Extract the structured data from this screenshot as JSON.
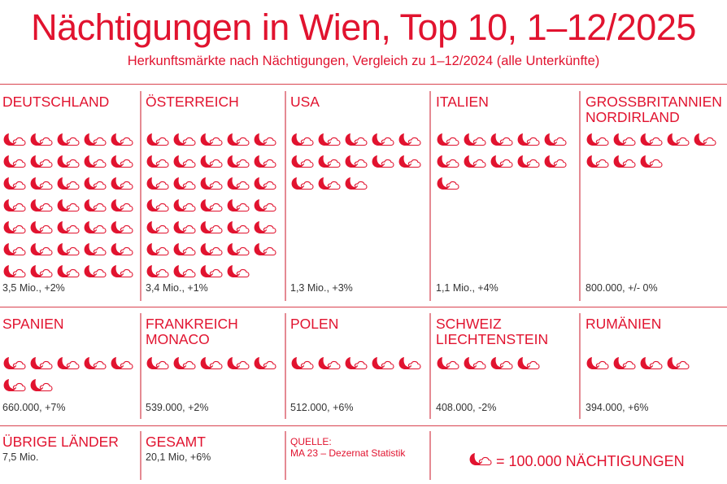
{
  "title": "Nächtigungen in Wien, Top 10, 1–12/2025",
  "subtitle": "Herkunftsmärkte nach Nächtigungen, Vergleich zu 1–12/2024 (alle Unterkünfte)",
  "colors": {
    "accent": "#e1132f",
    "divider": "#e58a93",
    "text": "#333333"
  },
  "icon": "moon-cloud-icon",
  "chart_data": {
    "type": "pictogram",
    "title": "Nächtigungen in Wien, Top 10, 1–12/2025",
    "unit_per_icon": 100000,
    "categories": [
      "DEUTSCHLAND",
      "ÖSTERREICH",
      "USA",
      "ITALIEN",
      "GROSSBRITANNIEN NORDIRLAND",
      "SPANIEN",
      "FRANKREICH MONACO",
      "POLEN",
      "SCHWEIZ LIECHTENSTEIN",
      "RUMÄNIEN"
    ],
    "icons": [
      35,
      34,
      13,
      11,
      8,
      7,
      5,
      5,
      4,
      4
    ],
    "labels": [
      "3,5 Mio., +2%",
      "3,4 Mio., +1%",
      "1,3 Mio., +3%",
      "1,1 Mio., +4%",
      "800.000, +/- 0%",
      "660.000, +7%",
      "539.000, +2%",
      "512.000, +6%",
      "408.000, -2%",
      "394.000, +6%"
    ]
  },
  "footer": {
    "others_label": "ÜBRIGE LÄNDER",
    "others_value": "7,5 Mio.",
    "total_label": "GESAMT",
    "total_value": "20,1 Mio, +6%",
    "source_label": "QUELLE:",
    "source_value": "MA 23 – Dezernat Statistik",
    "legend": "= 100.000 NÄCHTIGUNGEN"
  }
}
